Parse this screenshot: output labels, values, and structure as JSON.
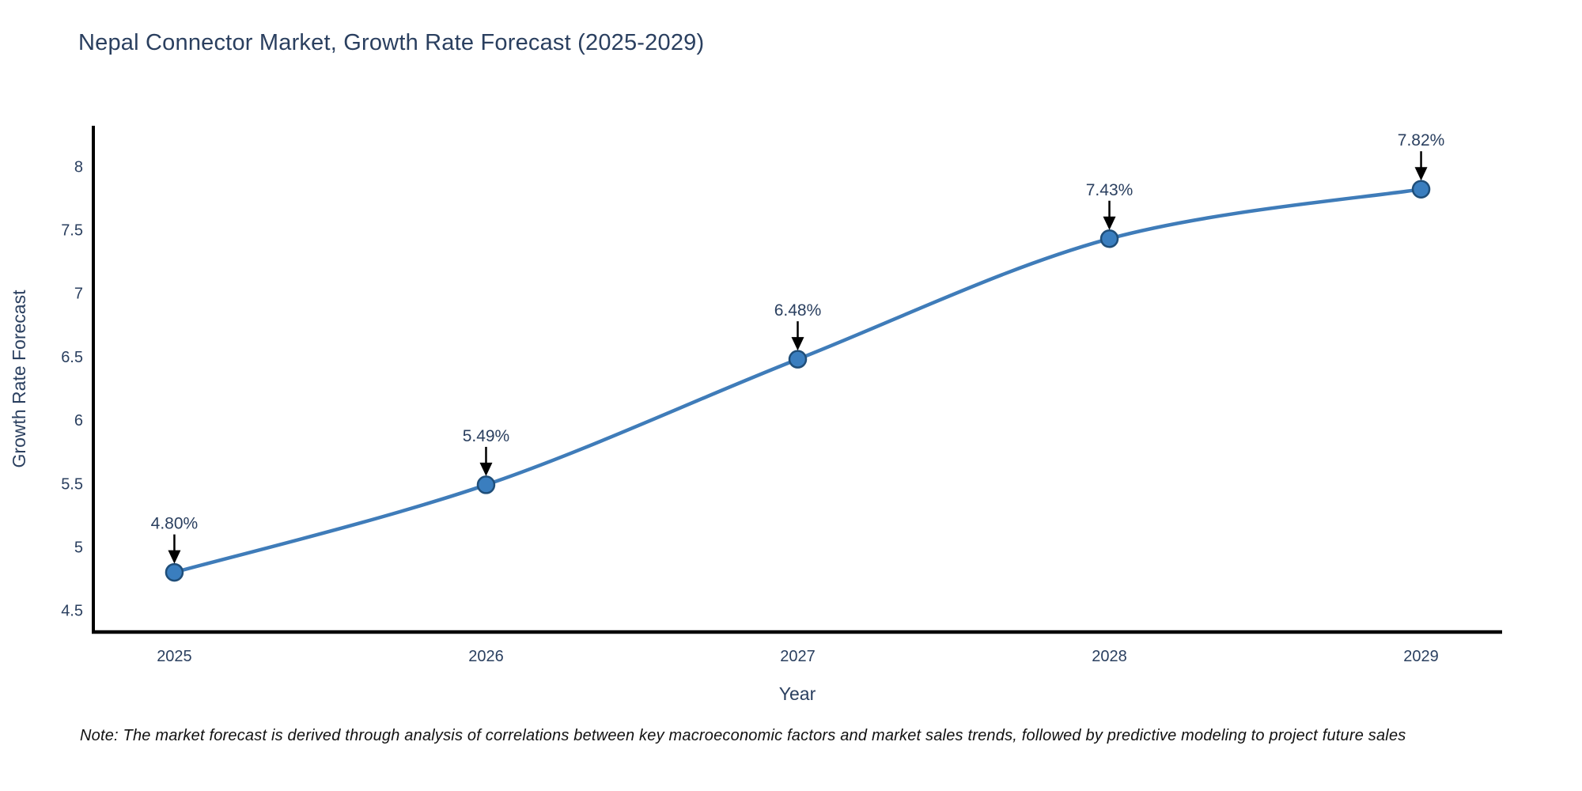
{
  "title": "Nepal Connector Market, Growth Rate Forecast (2025-2029)",
  "note": "Note: The market forecast is derived through analysis of correlations between key macroeconomic factors and market sales trends, followed by predictive modeling to project future sales",
  "chart_data": {
    "type": "line",
    "title": "Nepal Connector Market, Growth Rate Forecast (2025-2029)",
    "xlabel": "Year",
    "ylabel": "Growth Rate Forecast",
    "x": [
      2025,
      2026,
      2027,
      2028,
      2029
    ],
    "values": [
      4.8,
      5.49,
      6.48,
      7.43,
      7.82
    ],
    "point_labels": [
      "4.80%",
      "5.49%",
      "6.48%",
      "7.43%",
      "7.82%"
    ],
    "x_tick_labels": [
      "2025",
      "2026",
      "2027",
      "2028",
      "2029"
    ],
    "y_ticks": [
      4.5,
      5,
      5.5,
      6,
      6.5,
      7,
      7.5,
      8
    ],
    "y_tick_labels": [
      "4.5",
      "5",
      "5.5",
      "6",
      "6.5",
      "7",
      "7.5",
      "8"
    ],
    "xlim": [
      2024.74,
      2029.26
    ],
    "ylim": [
      4.33,
      8.32
    ],
    "grid": false,
    "legend": "none",
    "line_shape": "spline",
    "annotation_style": "arrow-down-to-point",
    "colors": {
      "line": "#3f7cb9",
      "marker_fill": "#3a7ebf",
      "marker_edge": "#1f4e79",
      "text": "#2a3f5f",
      "axis_line": "#000000",
      "annotation_arrow": "#000000",
      "background": "#ffffff"
    }
  }
}
